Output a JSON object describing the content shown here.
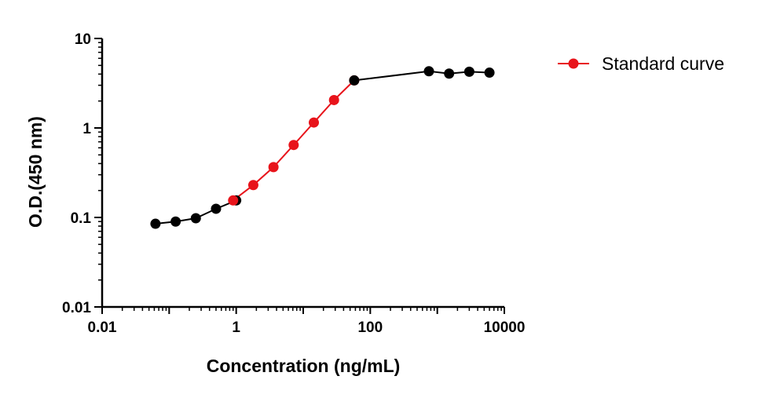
{
  "chart_data": {
    "type": "line",
    "x_scale": "log",
    "y_scale": "log",
    "xlabel": "Concentration (ng/mL)",
    "ylabel": "O.D.(450 nm)",
    "xlim": [
      0.01,
      10000
    ],
    "ylim": [
      0.01,
      10
    ],
    "x_ticks": [
      {
        "value": 0.01,
        "label": "0.01"
      },
      {
        "value": 1,
        "label": "1"
      },
      {
        "value": 100,
        "label": "100"
      },
      {
        "value": 10000,
        "label": "10000"
      }
    ],
    "y_ticks": [
      {
        "value": 0.01,
        "label": "0.01"
      },
      {
        "value": 0.1,
        "label": "0.1"
      },
      {
        "value": 1,
        "label": "1"
      },
      {
        "value": 10,
        "label": "10"
      }
    ],
    "grid": false,
    "legend_position": "top-right",
    "series": [
      {
        "name": "",
        "color": "#000000",
        "x": [
          0.0625,
          0.125,
          0.25,
          0.5,
          1
        ],
        "y": [
          0.085,
          0.09,
          0.098,
          0.125,
          0.155
        ]
      },
      {
        "name": "Standard curve",
        "color": "#e8141b",
        "x": [
          0.9,
          1.8,
          3.6,
          7.2,
          14.4,
          28.8,
          57.6
        ],
        "y": [
          0.155,
          0.23,
          0.365,
          0.645,
          1.15,
          2.05,
          3.4
        ]
      },
      {
        "name": "",
        "color": "#000000",
        "x": [
          57.6,
          750,
          1500,
          3000,
          6000
        ],
        "y": [
          3.4,
          4.3,
          4.05,
          4.25,
          4.15
        ]
      }
    ]
  }
}
